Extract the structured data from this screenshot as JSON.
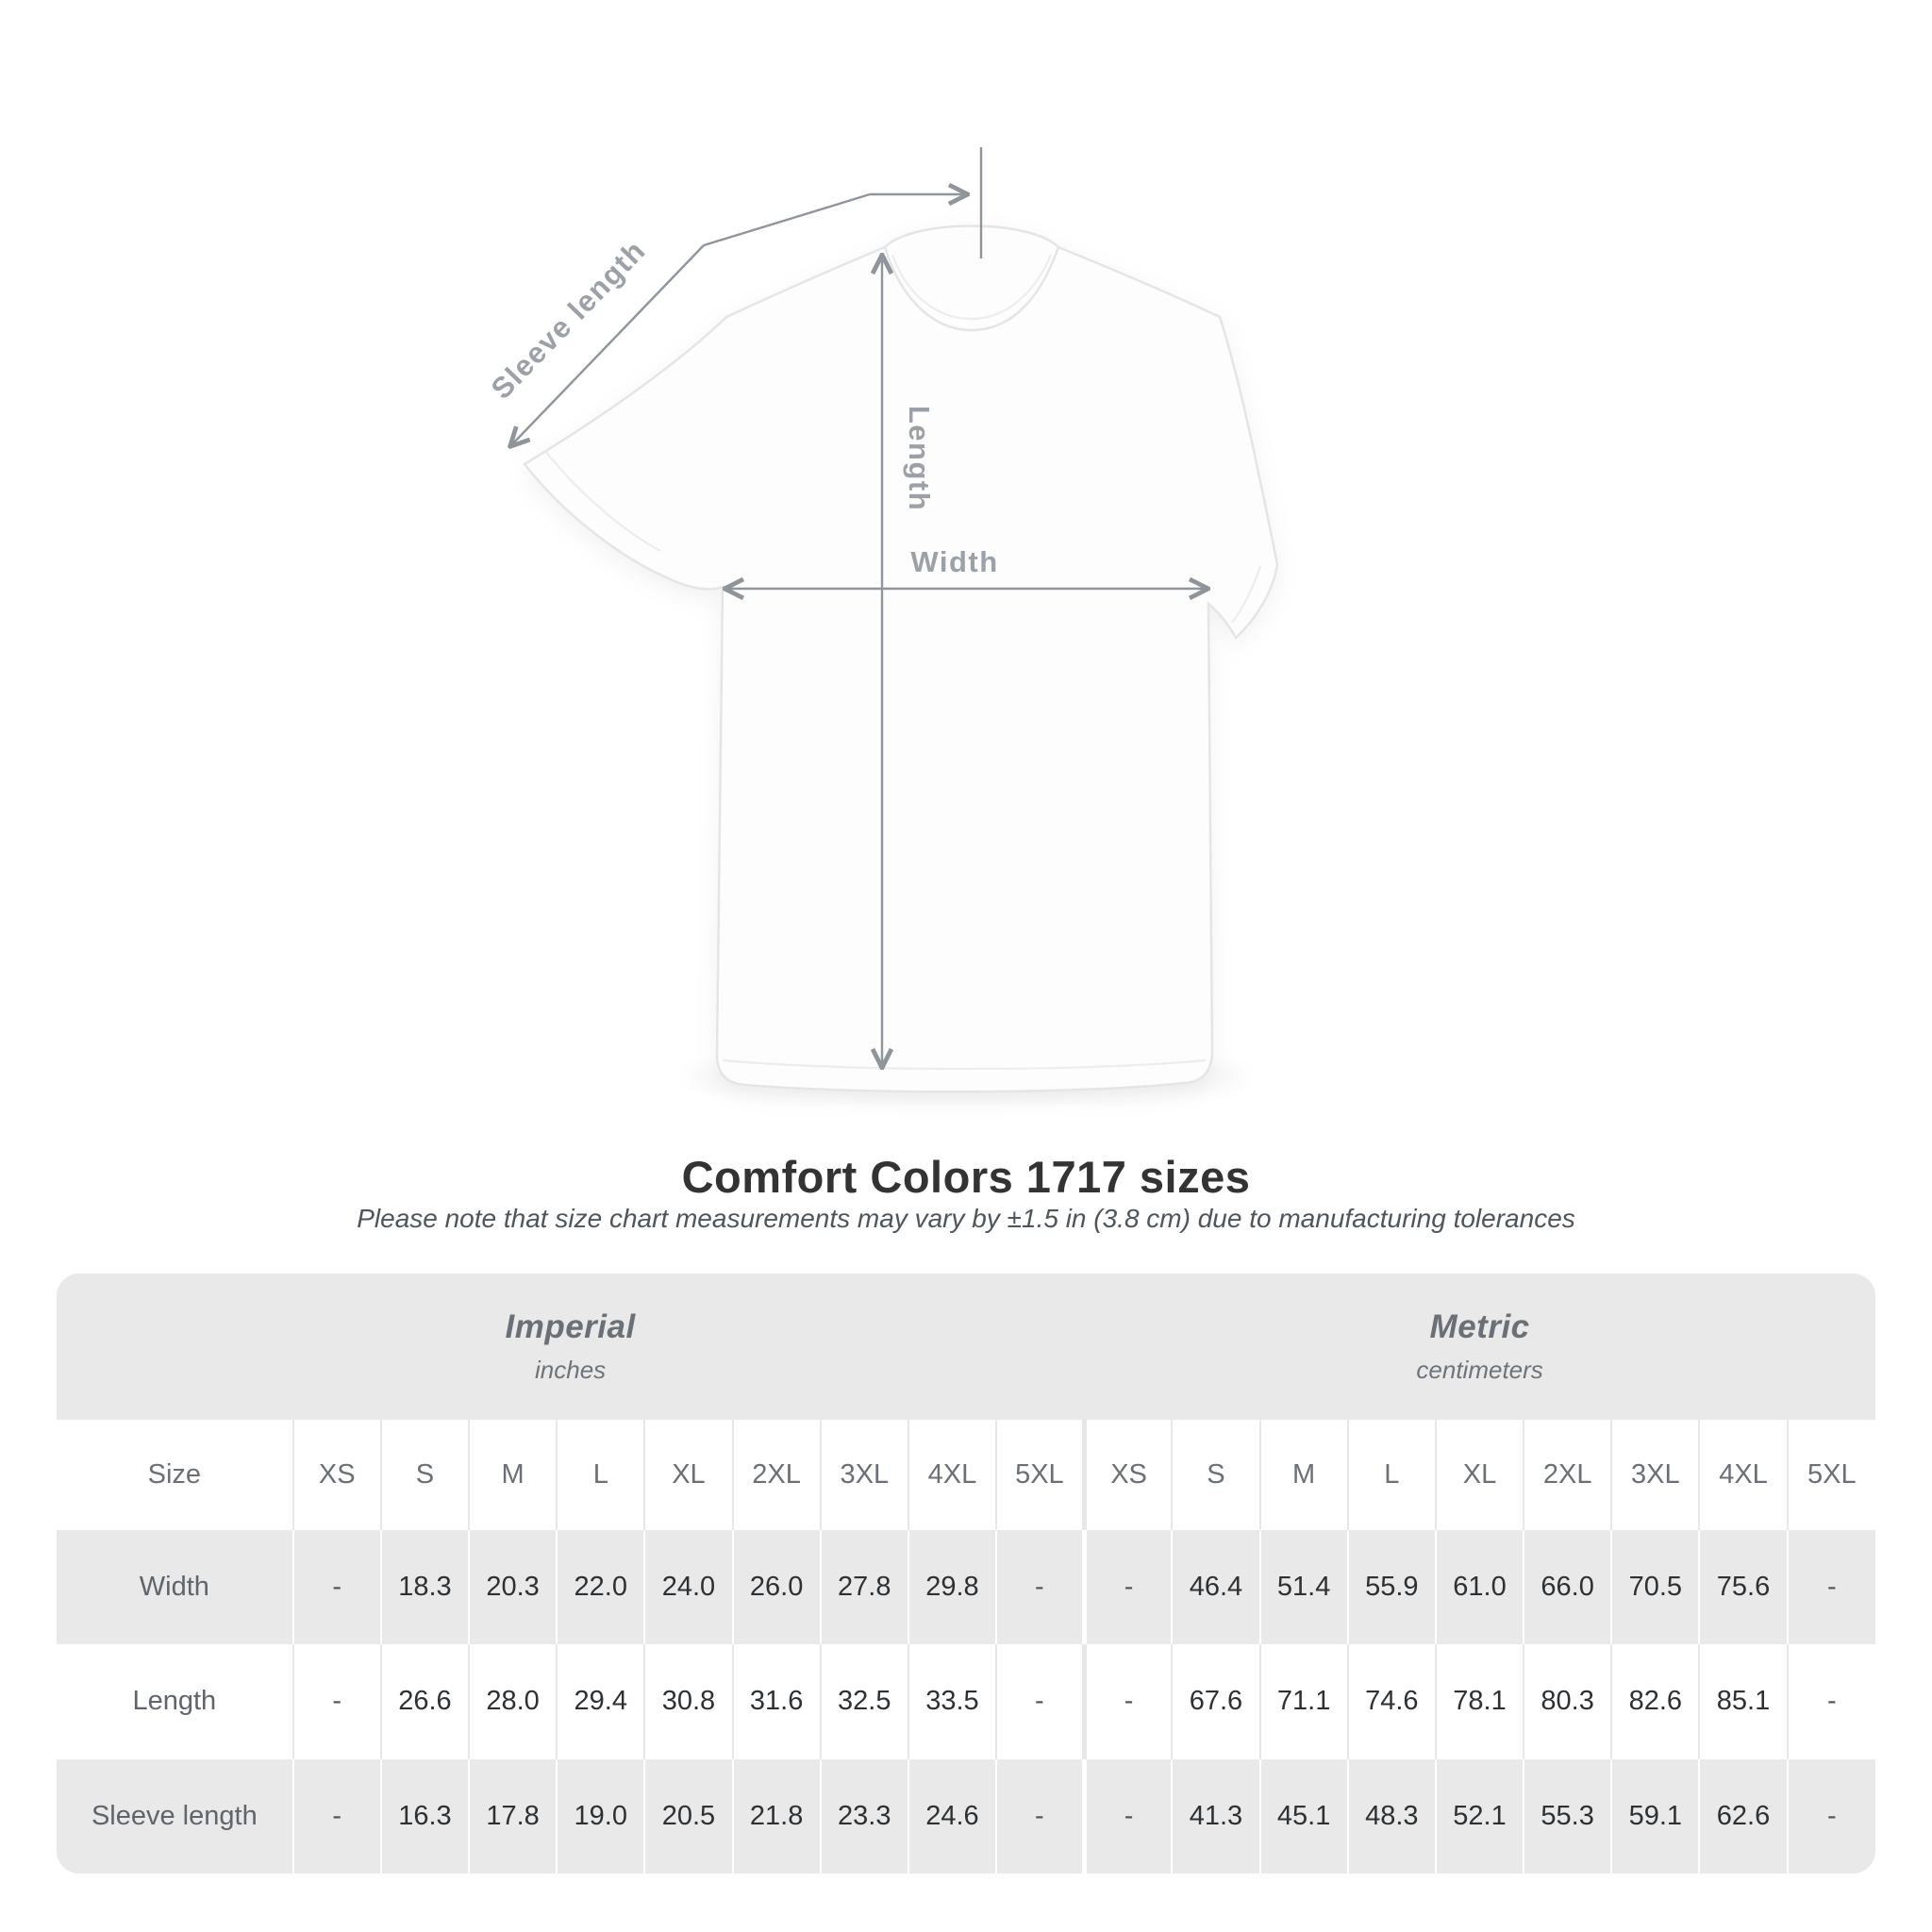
{
  "diagram": {
    "labels": {
      "sleeve_length": "Sleeve length",
      "length": "Length",
      "width": "Width"
    }
  },
  "title": "Comfort Colors 1717 sizes",
  "subtitle": "Please note that size chart measurements may vary by ±1.5 in (3.8 cm) due to manufacturing tolerances",
  "table": {
    "size_header": "Size",
    "groups": [
      {
        "name": "Imperial",
        "unit": "inches",
        "sizes": [
          "XS",
          "S",
          "M",
          "L",
          "XL",
          "2XL",
          "3XL",
          "4XL",
          "5XL"
        ]
      },
      {
        "name": "Metric",
        "unit": "centimeters",
        "sizes": [
          "XS",
          "S",
          "M",
          "L",
          "XL",
          "2XL",
          "3XL",
          "4XL",
          "5XL"
        ]
      }
    ],
    "rows": [
      {
        "label": "Width",
        "imperial": [
          "-",
          "18.3",
          "20.3",
          "22.0",
          "24.0",
          "26.0",
          "27.8",
          "29.8",
          "-"
        ],
        "metric": [
          "-",
          "46.4",
          "51.4",
          "55.9",
          "61.0",
          "66.0",
          "70.5",
          "75.6",
          "-"
        ]
      },
      {
        "label": "Length",
        "imperial": [
          "-",
          "26.6",
          "28.0",
          "29.4",
          "30.8",
          "31.6",
          "32.5",
          "33.5",
          "-"
        ],
        "metric": [
          "-",
          "67.6",
          "71.1",
          "74.6",
          "78.1",
          "80.3",
          "82.6",
          "85.1",
          "-"
        ]
      },
      {
        "label": "Sleeve length",
        "imperial": [
          "-",
          "16.3",
          "17.8",
          "19.0",
          "20.5",
          "21.8",
          "23.3",
          "24.6",
          "-"
        ],
        "metric": [
          "-",
          "41.3",
          "45.1",
          "48.3",
          "52.1",
          "55.3",
          "59.1",
          "62.6",
          "-"
        ]
      }
    ]
  },
  "chart_data": {
    "type": "table",
    "title": "Comfort Colors 1717 sizes",
    "row_headers": [
      "Width",
      "Length",
      "Sleeve length"
    ],
    "column_groups": [
      "Imperial (inches)",
      "Metric (centimeters)"
    ],
    "columns": [
      "XS",
      "S",
      "M",
      "L",
      "XL",
      "2XL",
      "3XL",
      "4XL",
      "5XL"
    ],
    "imperial": {
      "Width": [
        null,
        18.3,
        20.3,
        22.0,
        24.0,
        26.0,
        27.8,
        29.8,
        null
      ],
      "Length": [
        null,
        26.6,
        28.0,
        29.4,
        30.8,
        31.6,
        32.5,
        33.5,
        null
      ],
      "Sleeve length": [
        null,
        16.3,
        17.8,
        19.0,
        20.5,
        21.8,
        23.3,
        24.6,
        null
      ]
    },
    "metric": {
      "Width": [
        null,
        46.4,
        51.4,
        55.9,
        61.0,
        66.0,
        70.5,
        75.6,
        null
      ],
      "Length": [
        null,
        67.6,
        71.1,
        74.6,
        78.1,
        80.3,
        82.6,
        85.1,
        null
      ],
      "Sleeve length": [
        null,
        41.3,
        45.1,
        48.3,
        52.1,
        55.3,
        59.1,
        62.6,
        null
      ]
    }
  },
  "colors": {
    "panel": "#e9e9e9",
    "divider-light": "#e7e7e7",
    "header-text": "#6a7076",
    "unit-text": "#6d7378",
    "label-text": "#5f656b",
    "value-text": "#2e3134",
    "dim-line": "#8f959a",
    "dim-label": "#9ba1a7",
    "title": "#333333",
    "subtitle": "#4e555b"
  }
}
